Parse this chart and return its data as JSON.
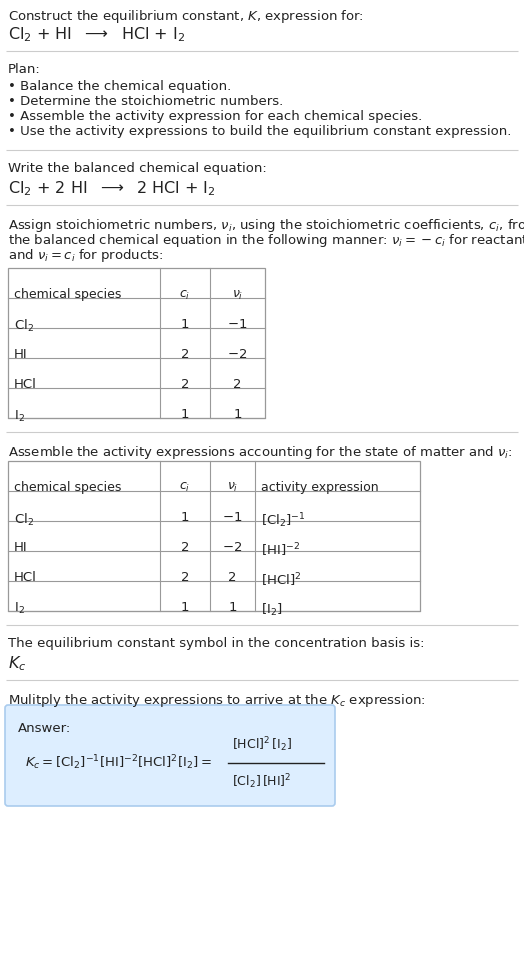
{
  "title_line1": "Construct the equilibrium constant, $K$, expression for:",
  "title_line2_parts": [
    "$\\mathrm{Cl_2}$",
    " + HI  ",
    "$\\longrightarrow$",
    "  HCl + ",
    "$\\mathrm{I_2}$"
  ],
  "plan_header": "Plan:",
  "plan_items": [
    "• Balance the chemical equation.",
    "• Determine the stoichiometric numbers.",
    "• Assemble the activity expression for each chemical species.",
    "• Use the activity expressions to build the equilibrium constant expression."
  ],
  "balanced_header": "Write the balanced chemical equation:",
  "balanced_eq_parts": [
    "$\\mathrm{Cl_2}$",
    " + 2 HI  ",
    "$\\longrightarrow$",
    "  2 HCl + ",
    "$\\mathrm{I_2}$"
  ],
  "stoich_lines": [
    "Assign stoichiometric numbers, $\\nu_i$, using the stoichiometric coefficients, $c_i$, from",
    "the balanced chemical equation in the following manner: $\\nu_i = -c_i$ for reactants",
    "and $\\nu_i = c_i$ for products:"
  ],
  "table1_headers": [
    "chemical species",
    "$c_i$",
    "$\\nu_i$"
  ],
  "table1_data": [
    [
      "$\\mathrm{Cl_2}$",
      "1",
      "$-1$"
    ],
    [
      "HI",
      "2",
      "$-2$"
    ],
    [
      "HCl",
      "2",
      "2"
    ],
    [
      "$\\mathrm{I_2}$",
      "1",
      "1"
    ]
  ],
  "activity_header": "Assemble the activity expressions accounting for the state of matter and $\\nu_i$:",
  "table2_headers": [
    "chemical species",
    "$c_i$",
    "$\\nu_i$",
    "activity expression"
  ],
  "table2_data": [
    [
      "$\\mathrm{Cl_2}$",
      "1",
      "$-1$",
      "$[\\mathrm{Cl_2}]^{-1}$"
    ],
    [
      "HI",
      "2",
      "$-2$",
      "$[\\mathrm{HI}]^{-2}$"
    ],
    [
      "HCl",
      "2",
      "2",
      "$[\\mathrm{HCl}]^{2}$"
    ],
    [
      "$\\mathrm{I_2}$",
      "1",
      "1",
      "$[\\mathrm{I_2}]$"
    ]
  ],
  "kc_header": "The equilibrium constant symbol in the concentration basis is:",
  "kc_symbol": "$K_c$",
  "multiply_header": "Mulitply the activity expressions to arrive at the $K_c$ expression:",
  "answer_label": "Answer:",
  "answer_box_color": "#ddeeff",
  "answer_box_border": "#aaccee",
  "bg_color": "#ffffff",
  "text_color": "#222222",
  "table_border_color": "#999999",
  "separator_color": "#cccccc",
  "font_size": 9.5
}
